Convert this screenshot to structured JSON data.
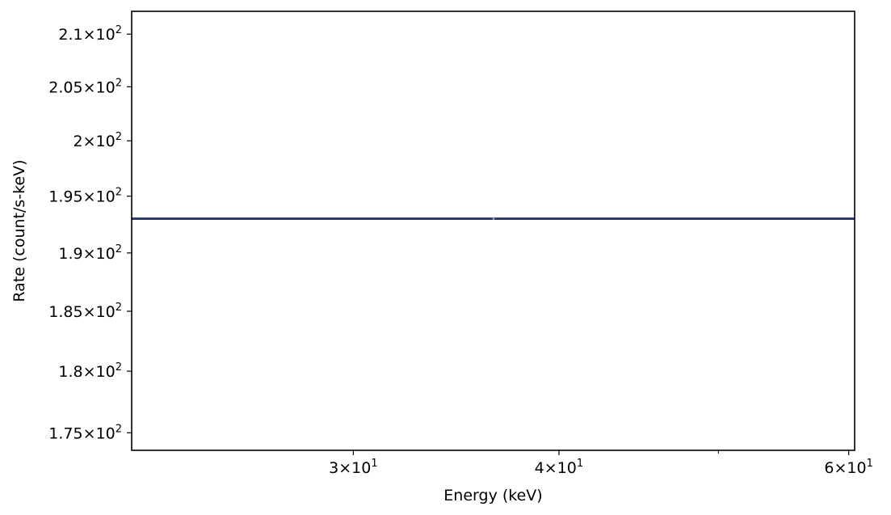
{
  "chart_data": {
    "type": "line",
    "title": "",
    "xlabel": "Energy (keV)",
    "ylabel": "Rate (count/s-keV)",
    "x_scale": "log",
    "y_scale": "log",
    "xlim": [
      22,
      60.5
    ],
    "ylim": [
      173.6,
      212.2
    ],
    "x_ticks": [
      {
        "value": 30,
        "mantissa": "3",
        "base": "10",
        "exp": "1"
      },
      {
        "value": 40,
        "mantissa": "4",
        "base": "10",
        "exp": "1"
      },
      {
        "value": 60,
        "mantissa": "6",
        "base": "10",
        "exp": "1"
      }
    ],
    "x_minor_ticks": [
      50
    ],
    "y_ticks": [
      {
        "value": 175,
        "mantissa": "1.75",
        "base": "10",
        "exp": "2"
      },
      {
        "value": 180,
        "mantissa": "1.8",
        "base": "10",
        "exp": "2"
      },
      {
        "value": 185,
        "mantissa": "1.85",
        "base": "10",
        "exp": "2"
      },
      {
        "value": 190,
        "mantissa": "1.9",
        "base": "10",
        "exp": "2"
      },
      {
        "value": 195,
        "mantissa": "1.95",
        "base": "10",
        "exp": "2"
      },
      {
        "value": 200,
        "mantissa": "2",
        "base": "10",
        "exp": "2"
      },
      {
        "value": 205,
        "mantissa": "2.05",
        "base": "10",
        "exp": "2"
      },
      {
        "value": 210,
        "mantissa": "2.1",
        "base": "10",
        "exp": "2"
      }
    ],
    "grid": false,
    "series": [
      {
        "color": "#2c3d6b",
        "x": [
          22,
          60.5
        ],
        "y": [
          193,
          193
        ]
      }
    ],
    "points": [
      {
        "x": 36.5,
        "y": 193,
        "color": "#9aa3b8"
      }
    ]
  }
}
